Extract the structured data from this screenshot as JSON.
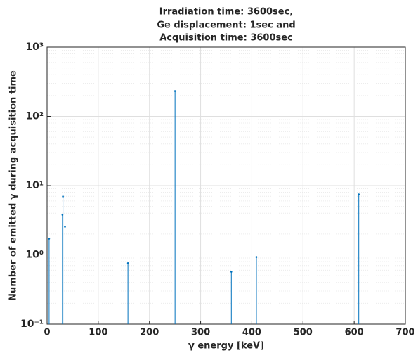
{
  "chart_data": {
    "type": "stem",
    "title": [
      "Irradiation time: 3600sec,",
      "Ge displacement: 1sec and",
      "Acquisition time: 3600sec"
    ],
    "xlabel": "γ energy [keV]",
    "ylabel": "Number of emitted γ during acquisition time",
    "x": [
      4,
      30,
      31,
      35,
      158,
      250,
      360,
      409,
      609
    ],
    "values": [
      1.71,
      3.79,
      6.96,
      2.55,
      0.76,
      232,
      0.57,
      0.93,
      7.46
    ],
    "color": "#0072bd",
    "xlim": [
      0,
      700
    ],
    "xticks": [
      0,
      100,
      200,
      300,
      400,
      500,
      600,
      700
    ],
    "ylim": [
      0.1,
      1000
    ],
    "yticks": [
      {
        "value": 0.1,
        "label": "10⁻¹"
      },
      {
        "value": 1,
        "label": "10⁰"
      },
      {
        "value": 10,
        "label": "10¹"
      },
      {
        "value": 100,
        "label": "10²"
      },
      {
        "value": 1000,
        "label": "10³"
      }
    ],
    "ylog": true,
    "grid": true
  }
}
